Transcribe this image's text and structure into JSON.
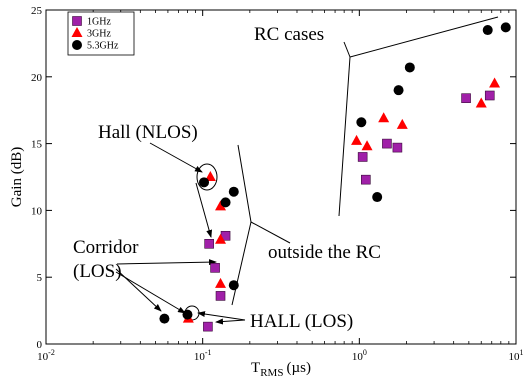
{
  "chart_data": {
    "type": "scatter",
    "xscale": "log",
    "xlim": [
      0.01,
      10
    ],
    "ylim": [
      0,
      25
    ],
    "xlabel_main": "T",
    "xlabel_sub": "RMS",
    "xlabel_unit": "(µs)",
    "ylabel": "Gain (dB)",
    "x_ticks": [
      {
        "value": 0.01,
        "base": "10",
        "exp": "-2"
      },
      {
        "value": 0.1,
        "base": "10",
        "exp": "-1"
      },
      {
        "value": 1,
        "base": "10",
        "exp": "0"
      },
      {
        "value": 10,
        "base": "10",
        "exp": "1"
      }
    ],
    "y_ticks": [
      0,
      5,
      10,
      15,
      20,
      25
    ],
    "legend_position": "top-left",
    "series": [
      {
        "name": "1GHz",
        "marker": "square",
        "color": "#a020a8",
        "points": [
          [
            0.11,
            7.5
          ],
          [
            0.12,
            5.7
          ],
          [
            0.13,
            3.6
          ],
          [
            0.14,
            8.1
          ],
          [
            0.108,
            1.3
          ],
          [
            1.05,
            14.0
          ],
          [
            1.1,
            12.3
          ],
          [
            1.5,
            15.0
          ],
          [
            1.75,
            14.7
          ],
          [
            4.8,
            18.4
          ],
          [
            6.8,
            18.6
          ]
        ]
      },
      {
        "name": "3GHz",
        "marker": "triangle",
        "color": "#ff0000",
        "points": [
          [
            0.112,
            12.5
          ],
          [
            0.13,
            10.3
          ],
          [
            0.13,
            7.8
          ],
          [
            0.13,
            4.5
          ],
          [
            0.081,
            1.9
          ],
          [
            0.96,
            15.2
          ],
          [
            1.12,
            14.8
          ],
          [
            1.43,
            16.9
          ],
          [
            1.88,
            16.4
          ],
          [
            6.0,
            18.0
          ],
          [
            7.3,
            19.5
          ]
        ]
      },
      {
        "name": "5.3GHz",
        "marker": "circle",
        "color": "#000000",
        "points": [
          [
            0.102,
            12.1
          ],
          [
            0.14,
            10.6
          ],
          [
            0.158,
            11.4
          ],
          [
            0.158,
            4.4
          ],
          [
            0.057,
            1.9
          ],
          [
            0.08,
            2.2
          ],
          [
            1.03,
            16.6
          ],
          [
            1.3,
            11.0
          ],
          [
            1.78,
            19.0
          ],
          [
            2.1,
            20.7
          ],
          [
            6.6,
            23.5
          ],
          [
            8.6,
            23.7
          ]
        ]
      }
    ],
    "annotations": {
      "rc_cases": "RC cases",
      "hall_nlos": "Hall (NLOS)",
      "corridor_line1": "Corridor",
      "corridor_line2": "(LOS)",
      "outside_rc": "outside the RC",
      "hall_los": "HALL (LOS)"
    }
  }
}
